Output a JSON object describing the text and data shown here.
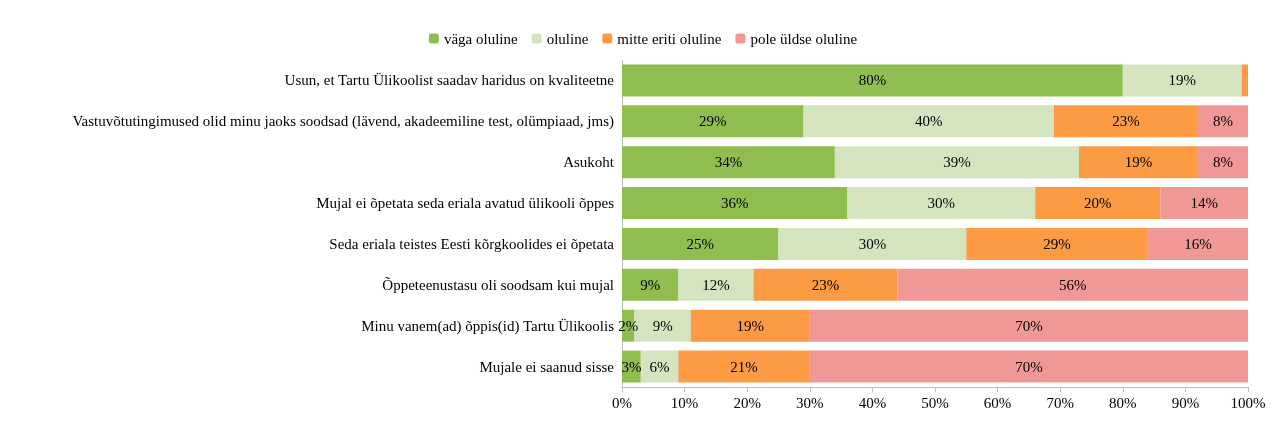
{
  "chart_data": {
    "type": "bar",
    "orientation": "horizontal",
    "stacked": true,
    "legend": "top",
    "grid": false,
    "categories": [
      "Usun, et Tartu Ülikoolist saadav haridus on kvaliteetne",
      "Vastuvõtutingimused olid minu jaoks soodsad (lävend, akadeemiline test, olümpiaad, jms)",
      "Asukoht",
      "Mujal ei õpetata seda eriala avatud ülikooli õppes",
      "Seda eriala teistes Eesti kõrgkoolides ei õpetata",
      "Õppeteenustasu oli soodsam kui mujal",
      "Minu vanem(ad) õppis(id) Tartu Ülikoolis",
      "Mujale ei saanud sisse"
    ],
    "xlim": [
      0,
      100
    ],
    "xticks": [
      {
        "value": 0,
        "label": "0%"
      },
      {
        "value": 10,
        "label": "10%"
      },
      {
        "value": 20,
        "label": "20%"
      },
      {
        "value": 30,
        "label": "30%"
      },
      {
        "value": 40,
        "label": "40%"
      },
      {
        "value": 50,
        "label": "50%"
      },
      {
        "value": 60,
        "label": "60%"
      },
      {
        "value": 70,
        "label": "70%"
      },
      {
        "value": 80,
        "label": "80%"
      },
      {
        "value": 90,
        "label": "90%"
      },
      {
        "value": 100,
        "label": "100%"
      }
    ],
    "series": [
      {
        "name": "väga oluline",
        "color": "#8fbd50",
        "values": [
          80,
          29,
          34,
          36,
          25,
          9,
          2,
          3
        ],
        "value_labels": [
          "80%",
          "29%",
          "34%",
          "36%",
          "25%",
          "9%",
          "2%",
          "3%"
        ]
      },
      {
        "name": "oluline",
        "color": "#d4e4bf",
        "values": [
          19,
          40,
          39,
          30,
          30,
          12,
          9,
          6
        ],
        "value_labels": [
          "19%",
          "40%",
          "39%",
          "30%",
          "30%",
          "12%",
          "9%",
          "6%"
        ]
      },
      {
        "name": "mitte eriti oluline",
        "color": "#fd9a44",
        "values": [
          1,
          23,
          19,
          20,
          29,
          23,
          19,
          21
        ],
        "value_labels": [
          null,
          "23%",
          "19%",
          "20%",
          "29%",
          "23%",
          "19%",
          "21%"
        ]
      },
      {
        "name": "pole üldse oluline",
        "color": "#ef9896",
        "values": [
          0,
          8,
          8,
          14,
          16,
          56,
          70,
          70
        ],
        "value_labels": [
          null,
          "8%",
          "8%",
          "14%",
          "16%",
          "56%",
          "70%",
          "70%"
        ]
      }
    ]
  }
}
